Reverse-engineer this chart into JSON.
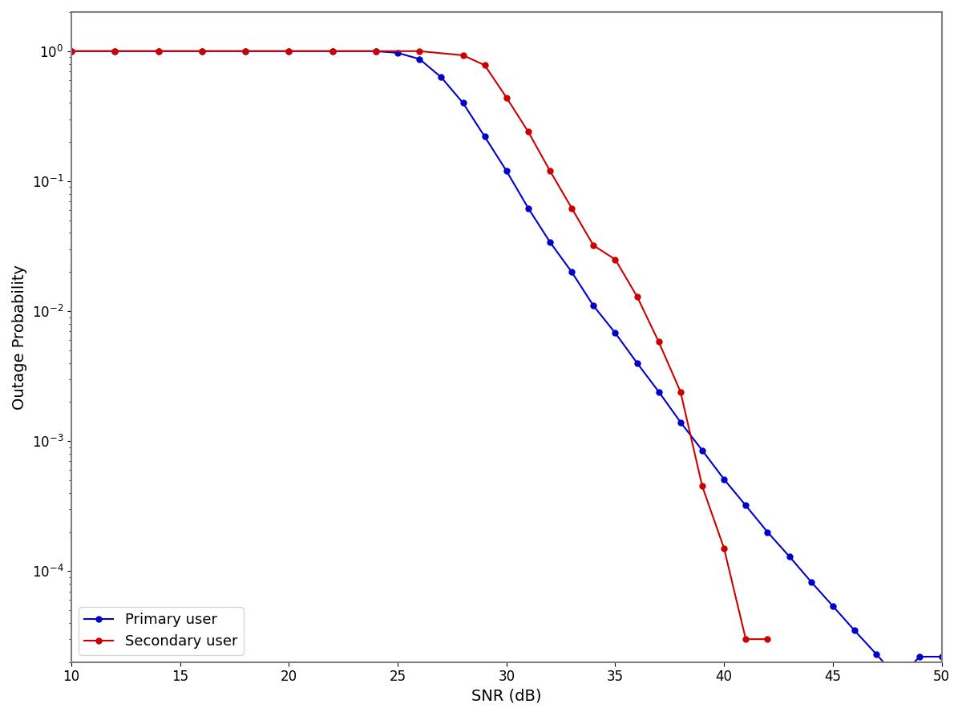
{
  "primary_user_x": [
    10,
    12,
    14,
    16,
    18,
    20,
    22,
    24,
    25,
    26,
    27,
    28,
    29,
    30,
    31,
    32,
    33,
    34,
    35,
    36,
    37,
    38,
    39,
    40,
    41,
    42,
    43,
    44,
    45,
    46,
    47,
    48,
    49,
    50
  ],
  "primary_user_y": [
    1.0,
    1.0,
    1.0,
    1.0,
    1.0,
    1.0,
    1.0,
    1.0,
    0.97,
    0.87,
    0.63,
    0.4,
    0.22,
    0.12,
    0.062,
    0.034,
    0.02,
    0.011,
    0.0068,
    0.004,
    0.0024,
    0.0014,
    0.00085,
    0.00051,
    0.00032,
    0.0002,
    0.00013,
    8.3e-05,
    5.4e-05,
    3.5e-05,
    2.3e-05,
    1.5e-05,
    2.2e-05,
    2.2e-05
  ],
  "secondary_user_x": [
    10,
    12,
    14,
    16,
    18,
    20,
    22,
    24,
    26,
    28,
    29,
    30,
    31,
    32,
    33,
    34,
    35,
    36,
    37,
    38,
    39,
    40,
    41,
    42
  ],
  "secondary_user_y": [
    1.0,
    1.0,
    1.0,
    1.0,
    1.0,
    1.0,
    1.0,
    1.0,
    1.0,
    0.93,
    0.78,
    0.44,
    0.24,
    0.12,
    0.062,
    0.032,
    0.025,
    0.013,
    0.0058,
    0.0024,
    0.00045,
    0.00015,
    3e-05,
    3e-05
  ],
  "primary_color": "#0000cc",
  "secondary_color": "#cc0000",
  "xlabel": "SNR (dB)",
  "ylabel": "Outage Probability",
  "xlim": [
    10,
    50
  ],
  "ylim": [
    2e-05,
    2.0
  ],
  "legend_labels": [
    "Primary user",
    "Secondary user"
  ],
  "legend_loc": "lower left",
  "marker": "o",
  "marker_size": 5,
  "linewidth": 1.5
}
